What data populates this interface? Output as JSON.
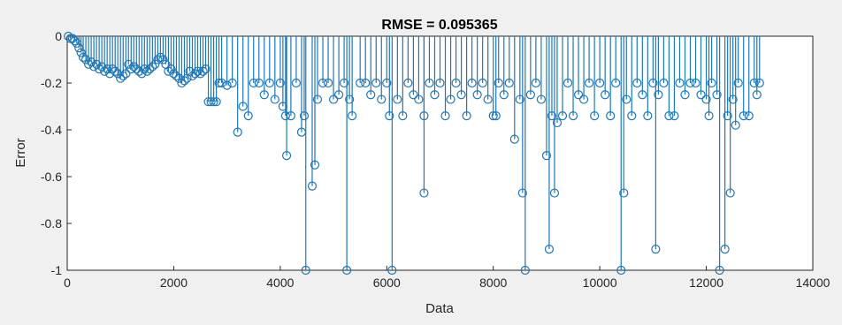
{
  "chart_data": {
    "type": "stem",
    "title": "RMSE = 0.095365",
    "xlabel": "Data",
    "ylabel": "Error",
    "xlim": [
      0,
      14000
    ],
    "ylim": [
      -1,
      0
    ],
    "xticks": [
      0,
      2000,
      4000,
      6000,
      8000,
      10000,
      12000,
      14000
    ],
    "yticks": [
      0,
      -0.2,
      -0.4,
      -0.6,
      -0.8,
      -1
    ],
    "ytick_labels": [
      "0",
      "-0.2",
      "-0.4",
      "-0.6",
      "-0.8",
      "-1"
    ],
    "grid": false,
    "color": "#1f77b4",
    "marker": "open-circle",
    "series": [
      {
        "points": [
          [
            20,
            0
          ],
          [
            60,
            -0.01
          ],
          [
            100,
            -0.01
          ],
          [
            140,
            -0.02
          ],
          [
            180,
            -0.03
          ],
          [
            220,
            -0.05
          ],
          [
            260,
            -0.07
          ],
          [
            300,
            -0.09
          ],
          [
            350,
            -0.1
          ],
          [
            400,
            -0.12
          ],
          [
            450,
            -0.11
          ],
          [
            500,
            -0.13
          ],
          [
            550,
            -0.12
          ],
          [
            600,
            -0.14
          ],
          [
            650,
            -0.13
          ],
          [
            700,
            -0.15
          ],
          [
            750,
            -0.14
          ],
          [
            800,
            -0.16
          ],
          [
            850,
            -0.14
          ],
          [
            900,
            -0.15
          ],
          [
            950,
            -0.16
          ],
          [
            1000,
            -0.18
          ],
          [
            1050,
            -0.17
          ],
          [
            1100,
            -0.16
          ],
          [
            1150,
            -0.12
          ],
          [
            1200,
            -0.14
          ],
          [
            1250,
            -0.13
          ],
          [
            1300,
            -0.14
          ],
          [
            1350,
            -0.15
          ],
          [
            1400,
            -0.16
          ],
          [
            1450,
            -0.14
          ],
          [
            1500,
            -0.15
          ],
          [
            1550,
            -0.14
          ],
          [
            1600,
            -0.13
          ],
          [
            1650,
            -0.12
          ],
          [
            1700,
            -0.1
          ],
          [
            1750,
            -0.09
          ],
          [
            1800,
            -0.1
          ],
          [
            1850,
            -0.12
          ],
          [
            1900,
            -0.15
          ],
          [
            1950,
            -0.14
          ],
          [
            2000,
            -0.16
          ],
          [
            2050,
            -0.17
          ],
          [
            2100,
            -0.18
          ],
          [
            2150,
            -0.2
          ],
          [
            2200,
            -0.19
          ],
          [
            2250,
            -0.18
          ],
          [
            2300,
            -0.15
          ],
          [
            2350,
            -0.17
          ],
          [
            2400,
            -0.16
          ],
          [
            2450,
            -0.15
          ],
          [
            2500,
            -0.16
          ],
          [
            2550,
            -0.15
          ],
          [
            2600,
            -0.14
          ],
          [
            2650,
            -0.28
          ],
          [
            2700,
            -0.28
          ],
          [
            2750,
            -0.28
          ],
          [
            2800,
            -0.28
          ],
          [
            2850,
            -0.2
          ],
          [
            2900,
            -0.2
          ],
          [
            3000,
            -0.21
          ],
          [
            3100,
            -0.2
          ],
          [
            3200,
            -0.41
          ],
          [
            3300,
            -0.3
          ],
          [
            3400,
            -0.34
          ],
          [
            3500,
            -0.2
          ],
          [
            3600,
            -0.2
          ],
          [
            3700,
            -0.25
          ],
          [
            3800,
            -0.2
          ],
          [
            3900,
            -0.27
          ],
          [
            4000,
            -0.2
          ],
          [
            4050,
            -0.3
          ],
          [
            4100,
            -0.34
          ],
          [
            4120,
            -0.51
          ],
          [
            4200,
            -0.34
          ],
          [
            4300,
            -0.2
          ],
          [
            4400,
            -0.41
          ],
          [
            4450,
            -0.34
          ],
          [
            4480,
            -1.0
          ],
          [
            4600,
            -0.64
          ],
          [
            4650,
            -0.55
          ],
          [
            4700,
            -0.27
          ],
          [
            4800,
            -0.2
          ],
          [
            4900,
            -0.2
          ],
          [
            5000,
            -0.27
          ],
          [
            5100,
            -0.25
          ],
          [
            5200,
            -0.2
          ],
          [
            5250,
            -1.0
          ],
          [
            5300,
            -0.27
          ],
          [
            5350,
            -0.34
          ],
          [
            5500,
            -0.2
          ],
          [
            5600,
            -0.2
          ],
          [
            5700,
            -0.25
          ],
          [
            5800,
            -0.2
          ],
          [
            5900,
            -0.27
          ],
          [
            6000,
            -0.2
          ],
          [
            6050,
            -0.34
          ],
          [
            6100,
            -1.0
          ],
          [
            6200,
            -0.27
          ],
          [
            6300,
            -0.34
          ],
          [
            6400,
            -0.2
          ],
          [
            6500,
            -0.25
          ],
          [
            6600,
            -0.27
          ],
          [
            6700,
            -0.67
          ],
          [
            6700,
            -0.34
          ],
          [
            6800,
            -0.2
          ],
          [
            6900,
            -0.25
          ],
          [
            7000,
            -0.2
          ],
          [
            7100,
            -0.34
          ],
          [
            7200,
            -0.27
          ],
          [
            7300,
            -0.2
          ],
          [
            7400,
            -0.25
          ],
          [
            7500,
            -0.34
          ],
          [
            7600,
            -0.2
          ],
          [
            7700,
            -0.25
          ],
          [
            7800,
            -0.2
          ],
          [
            7900,
            -0.27
          ],
          [
            8000,
            -0.34
          ],
          [
            8050,
            -0.34
          ],
          [
            8100,
            -0.2
          ],
          [
            8200,
            -0.25
          ],
          [
            8300,
            -0.2
          ],
          [
            8400,
            -0.44
          ],
          [
            8500,
            -0.27
          ],
          [
            8550,
            -0.67
          ],
          [
            8600,
            -1.0
          ],
          [
            8700,
            -0.25
          ],
          [
            8800,
            -0.2
          ],
          [
            8900,
            -0.27
          ],
          [
            9000,
            -0.51
          ],
          [
            9050,
            -0.91
          ],
          [
            9100,
            -0.34
          ],
          [
            9150,
            -0.67
          ],
          [
            9200,
            -0.37
          ],
          [
            9300,
            -0.34
          ],
          [
            9400,
            -0.2
          ],
          [
            9500,
            -0.34
          ],
          [
            9600,
            -0.25
          ],
          [
            9700,
            -0.27
          ],
          [
            9800,
            -0.2
          ],
          [
            9900,
            -0.34
          ],
          [
            10000,
            -0.2
          ],
          [
            10100,
            -0.25
          ],
          [
            10200,
            -0.34
          ],
          [
            10300,
            -0.2
          ],
          [
            10400,
            -1.0
          ],
          [
            10450,
            -0.67
          ],
          [
            10500,
            -0.27
          ],
          [
            10600,
            -0.34
          ],
          [
            10700,
            -0.2
          ],
          [
            10800,
            -0.25
          ],
          [
            10900,
            -0.34
          ],
          [
            11000,
            -0.2
          ],
          [
            11050,
            -0.91
          ],
          [
            11100,
            -0.25
          ],
          [
            11200,
            -0.2
          ],
          [
            11300,
            -0.34
          ],
          [
            11400,
            -0.34
          ],
          [
            11500,
            -0.2
          ],
          [
            11600,
            -0.25
          ],
          [
            11700,
            -0.2
          ],
          [
            11800,
            -0.2
          ],
          [
            11900,
            -0.25
          ],
          [
            12000,
            -0.27
          ],
          [
            12050,
            -0.34
          ],
          [
            12100,
            -0.2
          ],
          [
            12200,
            -0.25
          ],
          [
            12250,
            -1.0
          ],
          [
            12350,
            -0.91
          ],
          [
            12400,
            -0.34
          ],
          [
            12450,
            -0.67
          ],
          [
            12500,
            -0.27
          ],
          [
            12550,
            -0.38
          ],
          [
            12600,
            -0.2
          ],
          [
            12700,
            -0.34
          ],
          [
            12800,
            -0.34
          ],
          [
            12900,
            -0.2
          ],
          [
            12950,
            -0.25
          ],
          [
            13000,
            -0.2
          ]
        ]
      }
    ]
  }
}
